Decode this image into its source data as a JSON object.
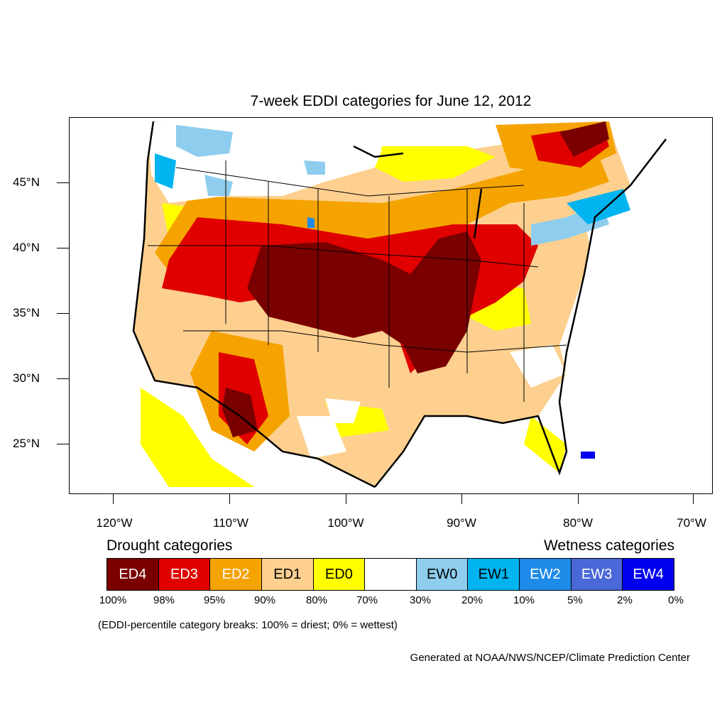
{
  "title": "7-week EDDI categories for June 12, 2012",
  "lat_labels": [
    "45°N",
    "40°N",
    "35°N",
    "30°N",
    "25°N"
  ],
  "lon_labels": [
    "120°W",
    "110°W",
    "100°W",
    "90°W",
    "80°W",
    "70°W"
  ],
  "drought_title": "Drought categories",
  "wetness_title": "Wetness categories",
  "categories": [
    {
      "label": "ED4",
      "color": "#7a0000",
      "text_color": "#ffffff"
    },
    {
      "label": "ED3",
      "color": "#e00000",
      "text_color": "#ffffff"
    },
    {
      "label": "ED2",
      "color": "#f5a300",
      "text_color": "#ffffff"
    },
    {
      "label": "ED1",
      "color": "#fdd08f",
      "text_color": "#000000"
    },
    {
      "label": "ED0",
      "color": "#ffff00",
      "text_color": "#000000"
    },
    {
      "label": "",
      "color": "#ffffff",
      "text_color": "#000000"
    },
    {
      "label": "EW0",
      "color": "#8ecdee",
      "text_color": "#000000"
    },
    {
      "label": "EW1",
      "color": "#00b4ef",
      "text_color": "#000000"
    },
    {
      "label": "EW2",
      "color": "#1e8be8",
      "text_color": "#ffffff"
    },
    {
      "label": "EW3",
      "color": "#4a68d8",
      "text_color": "#ffffff"
    },
    {
      "label": "EW4",
      "color": "#0000ee",
      "text_color": "#ffffff"
    }
  ],
  "percent_labels": [
    "100%",
    "98%",
    "95%",
    "90%",
    "80%",
    "70%",
    "30%",
    "20%",
    "10%",
    "5%",
    "2%",
    "0%"
  ],
  "note": "(EDDI-percentile category breaks: 100% = driest; 0% = wettest)",
  "credit": "Generated at NOAA/NWS/NCEP/Climate Prediction Center"
}
